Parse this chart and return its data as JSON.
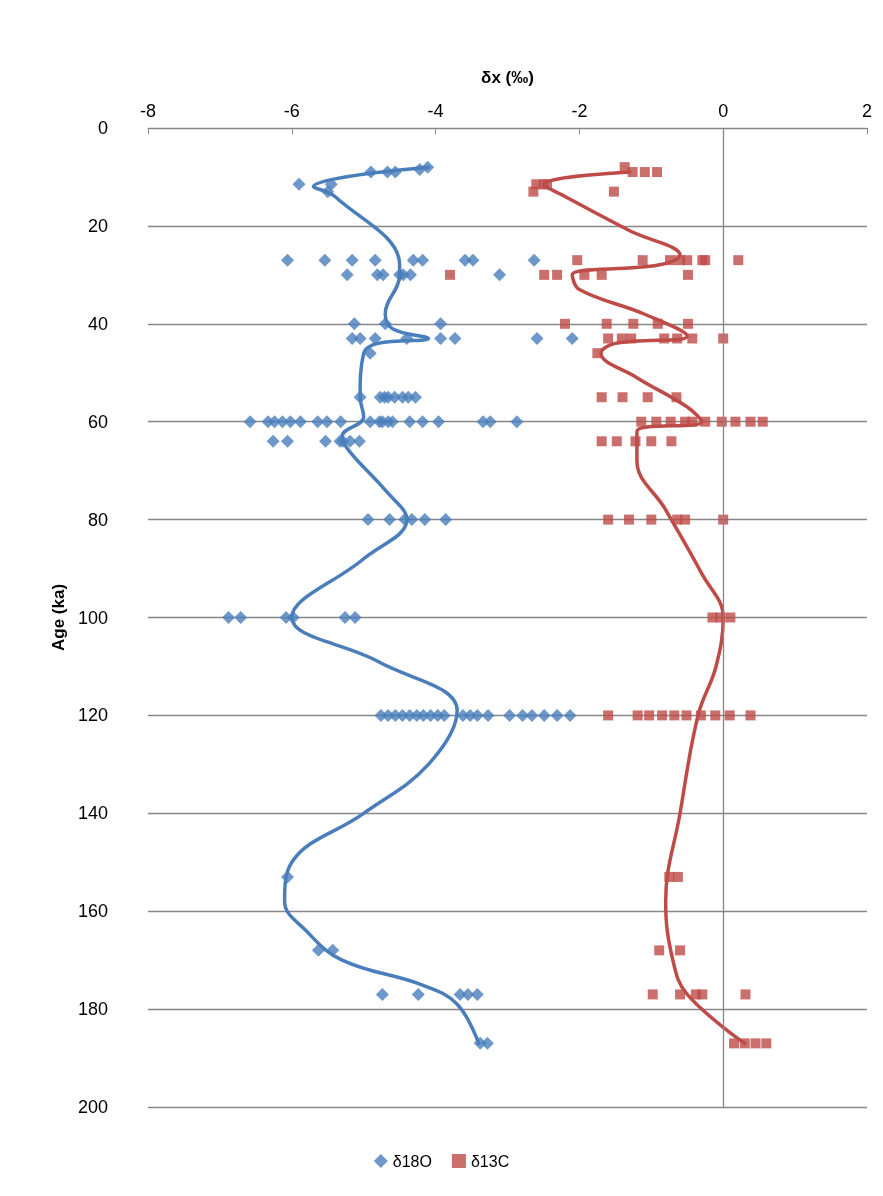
{
  "chart_data": {
    "type": "scatter",
    "xlabel": "δx (‰)",
    "ylabel": "Age (ka)",
    "xlim": [
      -8,
      2
    ],
    "xticks": [
      -8,
      -6,
      -4,
      -2,
      0,
      2
    ],
    "ylim": [
      200,
      0
    ],
    "yticks": [
      0,
      20,
      40,
      60,
      80,
      100,
      120,
      140,
      160,
      180,
      200
    ],
    "grid": "y",
    "legend": "bottom",
    "ref_lines": [
      {
        "axis": "x",
        "value": 0,
        "color": "#868686"
      }
    ],
    "series": [
      {
        "name": "δ18O",
        "marker": "diamond",
        "color": "#4a7ebb",
        "x": [
          -4.11,
          -4.22,
          -4.9,
          -4.67,
          -4.56,
          -5.9,
          -5.45,
          -5.5,
          -6.06,
          -5.54,
          -5.16,
          -4.84,
          -4.31,
          -4.18,
          -3.59,
          -3.48,
          -2.63,
          -5.23,
          -4.81,
          -4.73,
          -4.5,
          -4.45,
          -4.35,
          -3.11,
          -5.13,
          -4.7,
          -3.93,
          -5.16,
          -5.05,
          -4.84,
          -4.4,
          -3.93,
          -3.73,
          -2.59,
          -2.1,
          -4.91,
          -5.05,
          -4.77,
          -4.71,
          -4.66,
          -4.57,
          -4.46,
          -4.38,
          -4.28,
          -6.58,
          -6.33,
          -6.24,
          -6.13,
          -6.02,
          -5.88,
          -5.64,
          -5.51,
          -5.32,
          -4.91,
          -4.78,
          -4.74,
          -4.66,
          -4.6,
          -4.36,
          -4.18,
          -3.96,
          -3.34,
          -3.24,
          -2.87,
          -6.26,
          -6.06,
          -5.53,
          -5.33,
          -5.29,
          -5.19,
          -5.06,
          -4.94,
          -4.64,
          -4.43,
          -4.33,
          -4.15,
          -3.86,
          -6.88,
          -6.71,
          -6.08,
          -5.98,
          -5.26,
          -5.12,
          -4.76,
          -4.66,
          -4.56,
          -4.46,
          -4.36,
          -4.26,
          -4.17,
          -4.07,
          -3.97,
          -3.88,
          -3.62,
          -3.52,
          -3.42,
          -3.27,
          -2.97,
          -2.79,
          -2.66,
          -2.49,
          -2.31,
          -2.13,
          -6.06,
          -5.63,
          -5.43,
          -4.74,
          -4.24,
          -3.66,
          -3.55,
          -3.42,
          -3.38,
          -3.28
        ],
        "values": [
          8,
          8.5,
          9,
          9,
          9,
          11.5,
          11.5,
          13,
          27,
          27,
          27,
          27,
          27,
          27,
          27,
          27,
          27,
          30,
          30,
          30,
          30,
          30,
          30,
          30,
          40,
          40,
          40,
          43,
          43,
          43,
          43,
          43,
          43,
          43,
          43,
          46,
          55,
          55,
          55,
          55,
          55,
          55,
          55,
          55,
          60,
          60,
          60,
          60,
          60,
          60,
          60,
          60,
          60,
          60,
          60,
          60,
          60,
          60,
          60,
          60,
          60,
          60,
          60,
          60,
          64,
          64,
          64,
          64,
          64,
          64,
          64,
          80,
          80,
          80,
          80,
          80,
          80,
          100,
          100,
          100,
          100,
          100,
          100,
          120,
          120,
          120,
          120,
          120,
          120,
          120,
          120,
          120,
          120,
          120,
          120,
          120,
          120,
          120,
          120,
          120,
          120,
          120,
          120,
          153,
          168,
          168,
          177,
          177,
          177,
          177,
          177,
          187,
          187
        ]
      },
      {
        "name": "δ13C",
        "marker": "square",
        "color": "#be4b48",
        "x": [
          -1.37,
          -1.26,
          -1.09,
          -0.92,
          -2.6,
          -2.5,
          -2.45,
          -2.64,
          -1.52,
          -2.03,
          -1.12,
          -0.74,
          -0.6,
          -0.5,
          -0.29,
          -0.25,
          0.21,
          -3.8,
          -2.49,
          -2.31,
          -1.93,
          -1.69,
          -0.49,
          -2.2,
          -1.62,
          -1.25,
          -0.91,
          -0.49,
          -1.6,
          -1.41,
          -1.28,
          -0.82,
          -0.64,
          -0.43,
          0,
          -1.75,
          -1.69,
          -1.4,
          -1.05,
          -0.65,
          -1.14,
          -0.93,
          -0.73,
          -0.53,
          -0.43,
          -0.25,
          -0.02,
          0.17,
          0.38,
          0.55,
          -1.69,
          -1.48,
          -1.22,
          -1,
          -0.72,
          -1.6,
          -1.31,
          -1,
          -0.64,
          -0.53,
          0,
          -0.15,
          -0.04,
          0.1,
          -1.6,
          -1.19,
          -1.03,
          -0.85,
          -0.68,
          -0.51,
          -0.31,
          -0.11,
          0.09,
          0.38,
          -0.75,
          -0.63,
          -0.89,
          -0.6,
          -0.98,
          -0.6,
          -0.38,
          -0.29,
          0.31,
          0.15,
          0.3,
          0.45,
          0.6
        ],
        "values": [
          8,
          9,
          9,
          9,
          11.5,
          11.5,
          11.5,
          13,
          13,
          27,
          27,
          27,
          27,
          27,
          27,
          27,
          27,
          30,
          30,
          30,
          30,
          30,
          30,
          40,
          40,
          40,
          40,
          40,
          43,
          43,
          43,
          43,
          43,
          43,
          43,
          46,
          55,
          55,
          55,
          55,
          60,
          60,
          60,
          60,
          60,
          60,
          60,
          60,
          60,
          60,
          64,
          64,
          64,
          64,
          64,
          80,
          80,
          80,
          80,
          80,
          80,
          100,
          100,
          100,
          120,
          120,
          120,
          120,
          120,
          120,
          120,
          120,
          120,
          120,
          153,
          153,
          168,
          168,
          177,
          177,
          177,
          177,
          177,
          187,
          187,
          187,
          187
        ]
      },
      {
        "type": "line",
        "marker": "none",
        "color": "#4a7ebb",
        "x": [
          -4.1,
          -5.7,
          -5.4,
          -4.5,
          -4.5,
          -4.7,
          -4.6,
          -4.1,
          -4.8,
          -5.0,
          -5.05,
          -5.0,
          -5.3,
          -5.2,
          -4.7,
          -4.4,
          -5.0,
          -6.0,
          -4.8,
          -3.7,
          -4.1,
          -5.0,
          -6.0,
          -6.1,
          -5.8,
          -5.3,
          -4.2,
          -3.7,
          -3.4
        ],
        "values": [
          8,
          12,
          14,
          28,
          30,
          38,
          41,
          43,
          44,
          46,
          55,
          59,
          63,
          66,
          74,
          80,
          88,
          100,
          109,
          119,
          130,
          140,
          150,
          158,
          164,
          170,
          175,
          179,
          187
        ]
      },
      {
        "type": "line",
        "marker": "none",
        "color": "#be4b48",
        "x": [
          -1.3,
          -2.5,
          -2.2,
          -1.3,
          -0.6,
          -0.9,
          -2.1,
          -2.0,
          -1.1,
          -0.5,
          -1.5,
          -1.7,
          -1.2,
          -0.5,
          -0.3,
          -1.2,
          -1.2,
          -0.8,
          -0.3,
          0,
          -0.1,
          -0.35,
          -0.6,
          -0.8,
          -0.7,
          -0.5,
          0.3
        ],
        "values": [
          9,
          11.5,
          14,
          21,
          26,
          28,
          30,
          33,
          38,
          42.5,
          44,
          46,
          51,
          57,
          60,
          62,
          68,
          78,
          91,
          100,
          110,
          120,
          140,
          158,
          170,
          177,
          187
        ]
      }
    ]
  }
}
